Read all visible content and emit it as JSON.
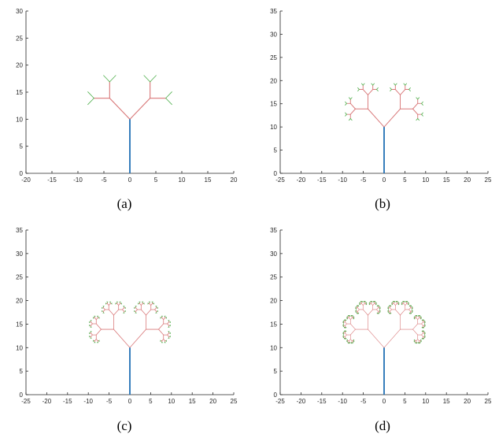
{
  "chart_data": [
    {
      "type": "line",
      "panel": "a",
      "caption": "(a)",
      "depth": 3,
      "xlim": [
        -20,
        20
      ],
      "ylim": [
        0,
        30
      ],
      "xticks": [
        -20,
        -15,
        -10,
        -5,
        0,
        5,
        10,
        15,
        20
      ],
      "yticks": [
        0,
        5,
        10,
        15,
        20,
        25,
        30
      ],
      "trunk": {
        "x": [
          0,
          0
        ],
        "y": [
          0,
          10
        ]
      },
      "grid": false
    },
    {
      "type": "line",
      "panel": "b",
      "caption": "(b)",
      "depth": 5,
      "xlim": [
        -25,
        25
      ],
      "ylim": [
        0,
        35
      ],
      "xticks": [
        -25,
        -20,
        -15,
        -10,
        -5,
        0,
        5,
        10,
        15,
        20,
        25
      ],
      "yticks": [
        0,
        5,
        10,
        15,
        20,
        25,
        30,
        35
      ],
      "trunk": {
        "x": [
          0,
          0
        ],
        "y": [
          0,
          10
        ]
      },
      "grid": false
    },
    {
      "type": "line",
      "panel": "c",
      "caption": "(c)",
      "depth": 7,
      "xlim": [
        -25,
        25
      ],
      "ylim": [
        0,
        35
      ],
      "xticks": [
        -25,
        -20,
        -15,
        -10,
        -5,
        0,
        5,
        10,
        15,
        20,
        25
      ],
      "yticks": [
        0,
        5,
        10,
        15,
        20,
        25,
        30,
        35
      ],
      "trunk": {
        "x": [
          0,
          0
        ],
        "y": [
          0,
          10
        ]
      },
      "grid": false
    },
    {
      "type": "line",
      "panel": "d",
      "caption": "(d)",
      "depth": 9,
      "xlim": [
        -25,
        25
      ],
      "ylim": [
        0,
        35
      ],
      "xticks": [
        -25,
        -20,
        -15,
        -10,
        -5,
        0,
        5,
        10,
        15,
        20,
        25
      ],
      "yticks": [
        0,
        5,
        10,
        15,
        20,
        25,
        30,
        35
      ],
      "trunk": {
        "x": [
          0,
          0
        ],
        "y": [
          0,
          10
        ]
      },
      "grid": false
    }
  ],
  "tree_model": {
    "trunk_length": 10,
    "branch_ratio": 0.55,
    "turn_degrees": 45,
    "levels_pattern": "branches turn left/right by 45 degrees, each branch shorter by the ratio"
  },
  "colors": {
    "trunk": "#1f6fb5",
    "branch": "#d9797a",
    "leaf": "#4daf4a",
    "axis": "#262626"
  }
}
